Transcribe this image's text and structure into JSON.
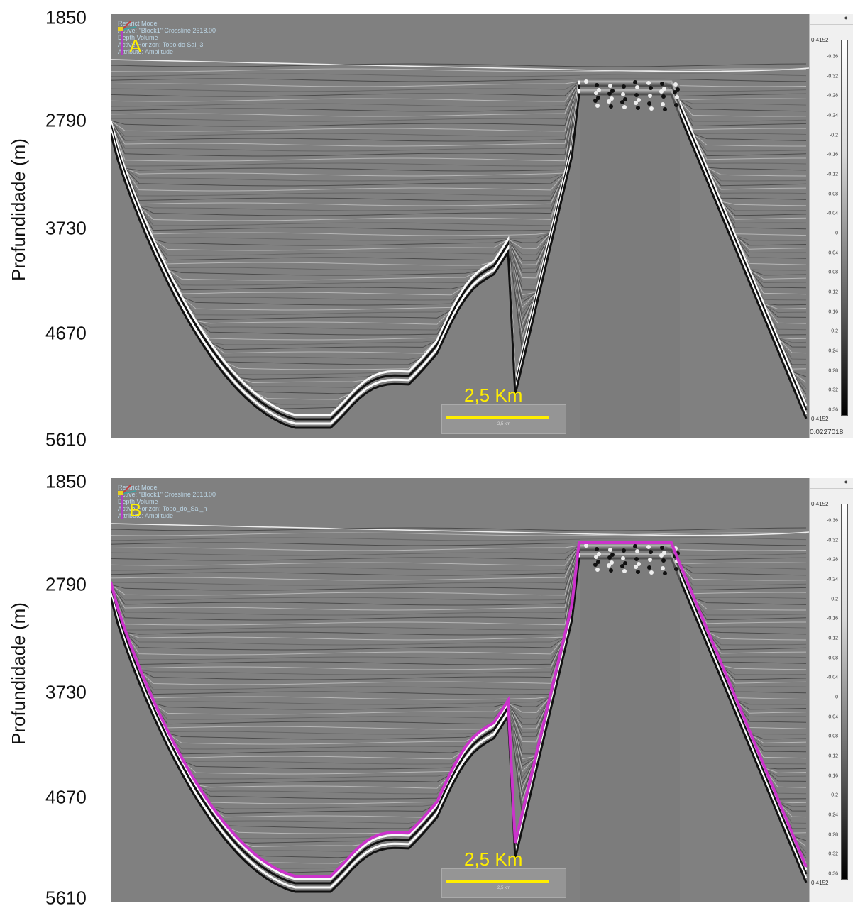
{
  "yaxis": {
    "label": "Profundidade (m)",
    "ticks": [
      "1850",
      "2790",
      "3730",
      "4670",
      "5610"
    ]
  },
  "panels": [
    {
      "label": "A",
      "hud": [
        "Restrict Mode",
        "Active: \"Block1\" Crossline 2618.00",
        "Depth Volume",
        "Active Horizon: Topo do Sal_3",
        "Attribute: Amplitude"
      ],
      "scale_text": "2,5 Km",
      "scale_small": "2,5 km",
      "show_horizon": false,
      "colorbar_footer": "0.0227018"
    },
    {
      "label": "B",
      "hud": [
        "Restrict Mode",
        "Active: \"Block1\" Crossline 2618.00",
        "Depth Volume",
        "Active Horizon: Topo_do_Sal_n",
        "Attribute: Amplitude"
      ],
      "scale_text": "2,5 Km",
      "scale_small": "2,5 km",
      "show_horizon": true,
      "colorbar_footer": ""
    }
  ],
  "colorbar": {
    "top": "0.4152",
    "bottom": "0.4152",
    "ticks": [
      "-0.36",
      "-0.32",
      "-0.28",
      "-0.24",
      "-0.2",
      "-0.16",
      "-0.12",
      "-0.08",
      "-0.04",
      "0",
      "0.04",
      "0.08",
      "0.12",
      "0.16",
      "0.2",
      "0.24",
      "0.28",
      "0.32",
      "0.36"
    ]
  },
  "colors": {
    "horizon": "#cc33cc",
    "scale": "#ffee00",
    "background": "#808080"
  }
}
